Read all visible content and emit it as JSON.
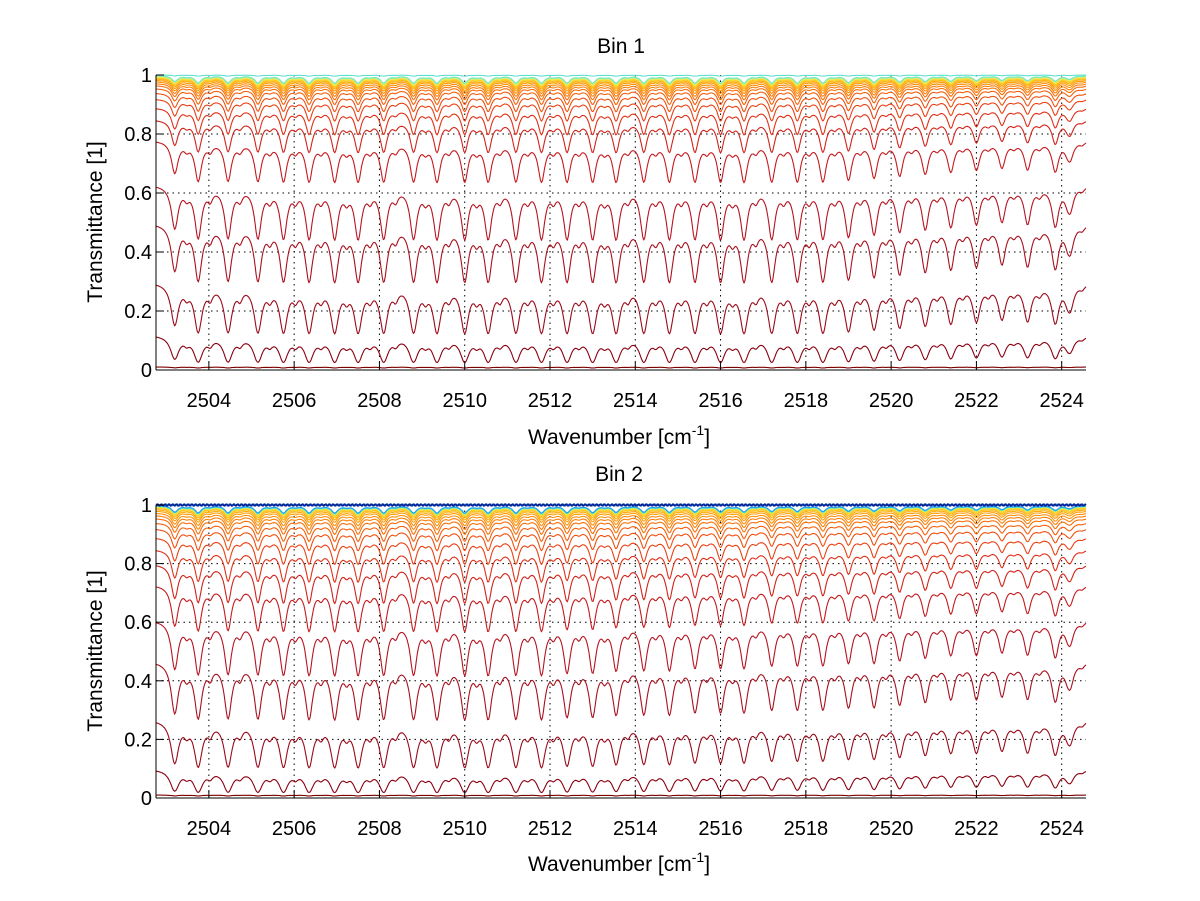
{
  "chart_data": [
    {
      "type": "line",
      "title": "Bin 1",
      "xlabel": "Wavenumber [cm",
      "xlabel_superscript": "-1",
      "xlabel_suffix": "]",
      "ylabel": "Transmittance [1]",
      "xlim": [
        2502.76,
        2524.57
      ],
      "ylim": [
        0,
        1
      ],
      "grid": true,
      "xticks": [
        2504,
        2506,
        2508,
        2510,
        2512,
        2514,
        2516,
        2518,
        2520,
        2522,
        2524
      ],
      "xtick_labels": [
        "2504",
        "2506",
        "2508",
        "2510",
        "2512",
        "2514",
        "2516",
        "2518",
        "2520",
        "2522",
        "2524"
      ],
      "yticks": [
        0,
        0.2,
        0.4,
        0.6,
        0.8,
        1
      ],
      "ytick_labels": [
        "0",
        "0.2",
        "0.4",
        "0.6",
        "0.8",
        "1"
      ],
      "colormap": "jet",
      "description": "Family of transmittance spectra, one per layer/path; deeper curves in dark red, near-unity curves transitioning orange-yellow-cyan",
      "series_levels": [
        0.01,
        0.12,
        0.3,
        0.5,
        0.63,
        0.78,
        0.85,
        0.89,
        0.92,
        0.94,
        0.955,
        0.965,
        0.972,
        0.978,
        0.983,
        0.987,
        0.99,
        0.992,
        0.994,
        0.996,
        0.997,
        0.998,
        0.999,
        1.0
      ],
      "series_colors": [
        "#7f0000",
        "#8a0010",
        "#9a0a1a",
        "#a8101e",
        "#b51420",
        "#c41a1e",
        "#d2221a",
        "#e03018",
        "#ea4014",
        "#f05010",
        "#f5600c",
        "#f8700a",
        "#fa800a",
        "#fb900c",
        "#fca010",
        "#fdb016",
        "#fdc020",
        "#fdd030",
        "#f8e048",
        "#e8ec60",
        "#c8f080",
        "#a0f0a0",
        "#78e8c0",
        "#60e0d0"
      ],
      "line_centers": [
        2503.2,
        2503.75,
        2504.45,
        2505.15,
        2505.75,
        2506.35,
        2506.95,
        2507.5,
        2508.1,
        2508.8,
        2509.35,
        2510.0,
        2510.55,
        2511.2,
        2511.8,
        2512.4,
        2513.0,
        2513.55,
        2514.2,
        2514.8,
        2515.4,
        2516.0,
        2516.55,
        2517.2,
        2517.8,
        2518.4,
        2519.0,
        2519.6,
        2520.2,
        2520.8,
        2521.4,
        2522.0,
        2522.6,
        2523.2,
        2523.85,
        2524.2
      ],
      "line_strengths": [
        0.8,
        1.0,
        1.0,
        1.0,
        1.0,
        1.0,
        1.0,
        1.0,
        1.0,
        1.0,
        1.0,
        1.0,
        1.0,
        1.0,
        1.0,
        1.0,
        1.0,
        1.0,
        1.0,
        1.0,
        1.0,
        1.0,
        1.0,
        1.0,
        1.0,
        1.0,
        0.95,
        0.9,
        0.85,
        0.8,
        0.75,
        0.7,
        0.65,
        0.7,
        0.75,
        0.4
      ]
    },
    {
      "type": "line",
      "title": "Bin 2",
      "xlabel": "Wavenumber [cm",
      "xlabel_superscript": "-1",
      "xlabel_suffix": "]",
      "ylabel": "Transmittance [1]",
      "xlim": [
        2502.76,
        2524.57
      ],
      "ylim": [
        0,
        1
      ],
      "grid": true,
      "xticks": [
        2504,
        2506,
        2508,
        2510,
        2512,
        2514,
        2516,
        2518,
        2520,
        2522,
        2524
      ],
      "xtick_labels": [
        "2504",
        "2506",
        "2508",
        "2510",
        "2512",
        "2514",
        "2516",
        "2518",
        "2520",
        "2522",
        "2524"
      ],
      "yticks": [
        0,
        0.2,
        0.4,
        0.6,
        0.8,
        1
      ],
      "ytick_labels": [
        "0",
        "0.2",
        "0.4",
        "0.6",
        "0.8",
        "1"
      ],
      "colormap": "jet",
      "description": "Family of transmittance spectra; top curves near unity transition through yellow, cyan to dark blue",
      "series_levels": [
        0.01,
        0.1,
        0.27,
        0.47,
        0.61,
        0.73,
        0.8,
        0.85,
        0.89,
        0.92,
        0.94,
        0.955,
        0.965,
        0.973,
        0.98,
        0.985,
        0.989,
        0.992,
        0.994,
        0.996,
        0.997,
        0.998,
        0.999,
        1.0,
        1.0,
        1.0
      ],
      "series_colors": [
        "#7f0000",
        "#8a0010",
        "#9a0a1a",
        "#a8101e",
        "#b51420",
        "#c41a1e",
        "#d2221a",
        "#e03018",
        "#ea4014",
        "#f05010",
        "#f5600c",
        "#f8700a",
        "#fa800a",
        "#fb900c",
        "#fca010",
        "#fdb016",
        "#fdc020",
        "#fdd030",
        "#f0e040",
        "#c0f070",
        "#80f0b0",
        "#40d0e0",
        "#20a0f0",
        "#1060e0",
        "#0830b0",
        "#00208a"
      ],
      "line_centers": [
        2503.2,
        2503.75,
        2504.45,
        2505.15,
        2505.75,
        2506.35,
        2506.95,
        2507.5,
        2508.1,
        2508.8,
        2509.35,
        2510.0,
        2510.55,
        2511.2,
        2511.8,
        2512.4,
        2513.0,
        2513.55,
        2514.2,
        2514.8,
        2515.4,
        2516.0,
        2516.55,
        2517.2,
        2517.8,
        2518.4,
        2519.0,
        2519.6,
        2520.2,
        2520.8,
        2521.4,
        2522.0,
        2522.6,
        2523.2,
        2523.85,
        2524.2
      ],
      "line_strengths": [
        0.9,
        1.0,
        1.0,
        1.0,
        1.0,
        1.0,
        1.0,
        1.0,
        1.0,
        1.0,
        1.0,
        1.0,
        1.0,
        1.0,
        1.0,
        0.95,
        0.95,
        0.9,
        0.9,
        0.9,
        0.85,
        0.85,
        0.85,
        0.8,
        0.8,
        0.8,
        0.75,
        0.75,
        0.7,
        0.65,
        0.6,
        0.6,
        0.55,
        0.6,
        0.65,
        0.35
      ]
    }
  ]
}
